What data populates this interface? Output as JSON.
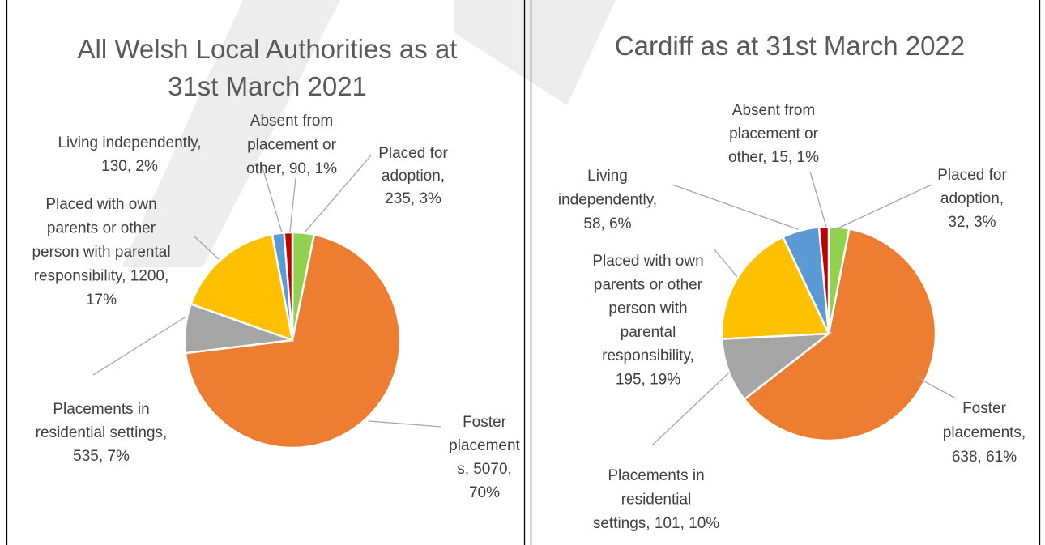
{
  "chart_data": [
    {
      "type": "pie",
      "title": "All Welsh Local Authorities as at 31st March 2021",
      "values": [
        235,
        5070,
        535,
        1200,
        130,
        90
      ],
      "value_labels": [
        [
          "Placed for",
          "adoption,",
          "235, 3%"
        ],
        [
          "Foster",
          "placement",
          "s, 5070,",
          "70%"
        ],
        [
          "Placements in",
          "residential settings,",
          "535, 7%"
        ],
        [
          "Placed with own",
          "parents or other",
          "person with parental",
          "responsibility, 1200,",
          "17%"
        ],
        [
          "Living independently,",
          "130, 2%"
        ],
        [
          "Absent from",
          "placement or",
          "other, 90, 1%"
        ]
      ],
      "colors": [
        "#92d050",
        "#ed7d31",
        "#a5a5a5",
        "#ffc000",
        "#5b9bd5",
        "#c00000"
      ]
    },
    {
      "type": "pie",
      "title": "Cardiff as at 31st March 2022",
      "values": [
        32,
        638,
        101,
        195,
        58,
        15
      ],
      "value_labels": [
        [
          "Placed for",
          "adoption,",
          "32, 3%"
        ],
        [
          "Foster",
          "placements,",
          "638, 61%"
        ],
        [
          "Placements in",
          "residential",
          "settings, 101, 10%"
        ],
        [
          "Placed with own",
          "parents or other",
          "person with",
          "parental",
          "responsibility,",
          "195, 19%"
        ],
        [
          "Living",
          "independently,",
          "58, 6%"
        ],
        [
          "Absent from",
          "placement or",
          "other, 15, 1%"
        ]
      ],
      "colors": [
        "#92d050",
        "#ed7d31",
        "#a5a5a5",
        "#ffc000",
        "#5b9bd5",
        "#c00000"
      ]
    }
  ]
}
